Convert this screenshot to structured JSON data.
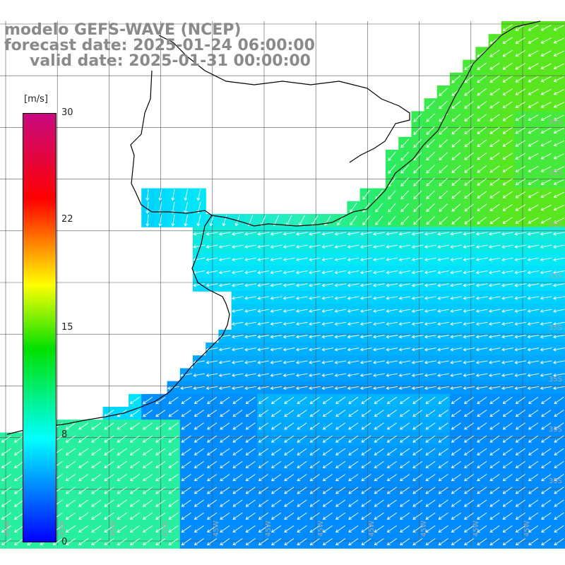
{
  "header": {
    "model": "modelo GEFS-WAVE (NCEP)",
    "forecast_date": "forecast date: 2025-01-24 06:00:00",
    "valid_date": "valid date: 2025-01-31 00:00:00"
  },
  "colorbar": {
    "unit": "[m/s]",
    "ticks": [
      "30",
      "22",
      "15",
      "8",
      "0"
    ],
    "colors": [
      "#c80a80",
      "#ff0000",
      "#ff8000",
      "#ffff00",
      "#00e000",
      "#00ffff",
      "#00a0ff",
      "#0000ff"
    ]
  },
  "lat_labels": [
    "35S",
    "35S",
    "35S",
    "35S",
    "35S",
    "35S",
    "35S",
    "35S"
  ],
  "lon_labels": [
    "45W",
    "45W",
    "45W",
    "45W",
    "45W",
    "45W",
    "45W",
    "45W",
    "45W",
    "45W",
    "45W"
  ],
  "colors": {
    "land": "#ffffff",
    "grid": "#555555",
    "coast": "#000000",
    "arrow": "#ffffff",
    "title": "#8a8a8a"
  }
}
